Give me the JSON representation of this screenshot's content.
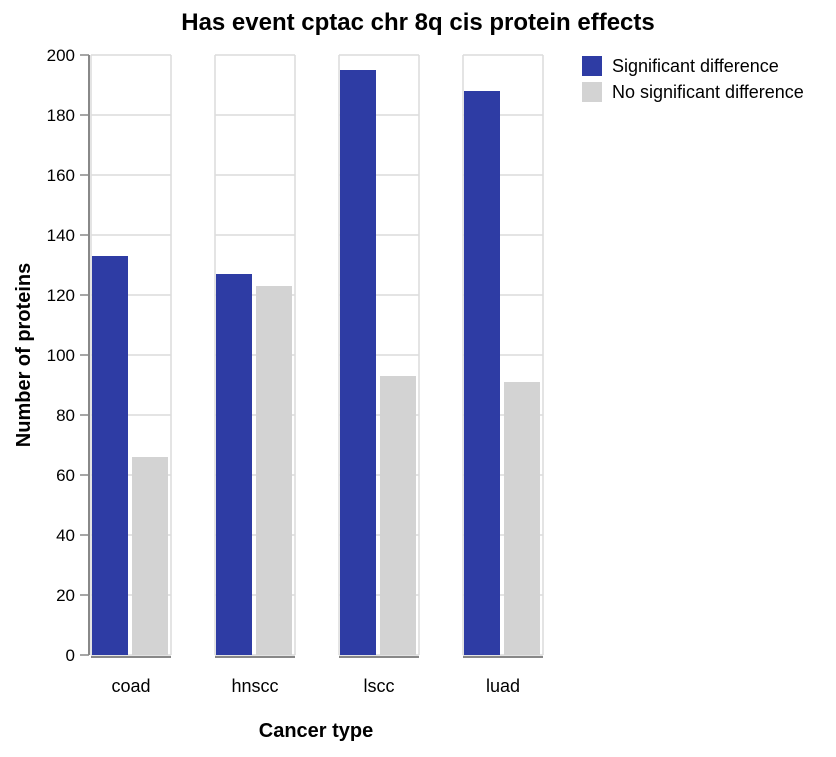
{
  "chart_data": {
    "type": "bar",
    "title": "Has event cptac chr 8q cis protein effects",
    "xlabel": "Cancer type",
    "ylabel": "Number of proteins",
    "categories": [
      "coad",
      "hnscc",
      "lscc",
      "luad"
    ],
    "series": [
      {
        "name": "Significant difference",
        "color": "#2e3ca4",
        "values": [
          133,
          127,
          195,
          188
        ]
      },
      {
        "name": "No significant difference",
        "color": "#d3d3d3",
        "values": [
          66,
          123,
          93,
          91
        ]
      }
    ],
    "ylim": [
      0,
      200
    ],
    "yticks": [
      0,
      20,
      40,
      60,
      80,
      100,
      120,
      140,
      160,
      180,
      200
    ],
    "grid": true,
    "legend_position": "top-right"
  }
}
